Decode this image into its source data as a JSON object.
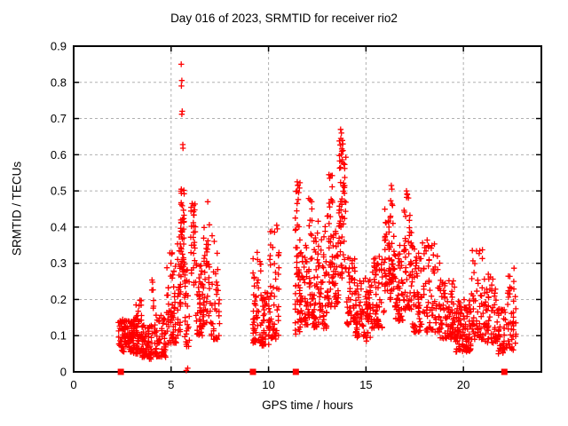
{
  "chart_data": {
    "type": "scatter",
    "title": "Day 016 of 2023, SRMTID for receiver rio2",
    "xlabel": "GPS time / hours",
    "ylabel": "SRMTID / TECUs",
    "xlim": [
      0,
      24
    ],
    "ylim": [
      0,
      0.9
    ],
    "xticks": [
      0,
      5,
      10,
      15,
      20
    ],
    "xtick_labels": [
      "0",
      "5",
      "10",
      "15",
      "20"
    ],
    "yticks": [
      0,
      0.1,
      0.2,
      0.3,
      0.4,
      0.5,
      0.6,
      0.7,
      0.8,
      0.9
    ],
    "ytick_labels": [
      "0",
      "0.1",
      "0.2",
      "0.3",
      "0.4",
      "0.5",
      "0.6",
      "0.7",
      "0.8",
      "0.9"
    ],
    "grid": true,
    "legend": "none",
    "marker": {
      "shape": "plus",
      "color": "#ff0000",
      "size": 6.5,
      "stroke_width": 1.3
    },
    "grid_color": "#b0b0b0",
    "border_color": "#000000",
    "axis_marker_shape": "filled-square",
    "axis_markers_x": [
      2.42,
      9.2,
      11.4,
      22.1
    ],
    "seed": 16,
    "clusters_format": [
      "x_start",
      "x_end",
      "count",
      "y_min",
      "y_max",
      "low_bias",
      "columns"
    ],
    "clusters": [
      [
        2.28,
        3.1,
        95,
        0.055,
        0.145,
        1.2,
        12
      ],
      [
        3.05,
        3.5,
        55,
        0.05,
        0.2,
        1.7,
        7
      ],
      [
        3.5,
        4.0,
        60,
        0.035,
        0.13,
        1.3,
        8
      ],
      [
        4.0,
        4.25,
        26,
        0.05,
        0.28,
        2.0,
        4
      ],
      [
        4.25,
        4.75,
        50,
        0.04,
        0.16,
        1.4,
        8
      ],
      [
        4.75,
        5.3,
        60,
        0.08,
        0.33,
        1.7,
        8
      ],
      [
        5.3,
        5.5,
        30,
        0.1,
        0.38,
        1.5,
        3
      ],
      [
        5.48,
        5.68,
        42,
        0.26,
        0.52,
        1.2,
        3
      ],
      [
        5.68,
        5.95,
        30,
        0.07,
        0.3,
        1.6,
        4
      ],
      [
        6.0,
        6.25,
        28,
        0.22,
        0.47,
        1.4,
        4
      ],
      [
        6.25,
        6.65,
        45,
        0.1,
        0.3,
        1.4,
        6
      ],
      [
        6.65,
        7.05,
        45,
        0.13,
        0.46,
        1.7,
        6
      ],
      [
        7.05,
        7.5,
        35,
        0.09,
        0.4,
        2.0,
        6
      ],
      [
        9.18,
        9.65,
        52,
        0.08,
        0.33,
        1.7,
        7
      ],
      [
        9.65,
        10.05,
        45,
        0.07,
        0.22,
        1.3,
        6
      ],
      [
        10.05,
        10.55,
        50,
        0.09,
        0.4,
        1.8,
        7
      ],
      [
        11.35,
        11.65,
        58,
        0.1,
        0.53,
        1.5,
        4
      ],
      [
        11.65,
        12.05,
        40,
        0.13,
        0.35,
        1.4,
        6
      ],
      [
        12.05,
        12.25,
        28,
        0.15,
        0.48,
        1.6,
        3
      ],
      [
        12.25,
        13.0,
        85,
        0.12,
        0.42,
        1.7,
        11
      ],
      [
        13.0,
        13.3,
        40,
        0.18,
        0.55,
        1.6,
        4
      ],
      [
        13.3,
        13.6,
        35,
        0.18,
        0.4,
        1.4,
        5
      ],
      [
        13.6,
        14.0,
        62,
        0.25,
        0.64,
        1.1,
        6
      ],
      [
        14.0,
        14.45,
        50,
        0.13,
        0.33,
        1.5,
        7
      ],
      [
        14.45,
        15.25,
        85,
        0.095,
        0.26,
        1.3,
        12
      ],
      [
        15.25,
        15.95,
        70,
        0.12,
        0.32,
        1.5,
        10
      ],
      [
        15.95,
        16.22,
        35,
        0.22,
        0.45,
        1.3,
        4
      ],
      [
        16.22,
        16.48,
        36,
        0.2,
        0.52,
        1.5,
        4
      ],
      [
        16.48,
        16.92,
        45,
        0.14,
        0.35,
        1.5,
        6
      ],
      [
        16.92,
        17.35,
        52,
        0.17,
        0.5,
        1.5,
        6
      ],
      [
        17.35,
        18.1,
        70,
        0.11,
        0.36,
        1.7,
        10
      ],
      [
        18.1,
        18.8,
        65,
        0.11,
        0.37,
        1.7,
        9
      ],
      [
        18.8,
        19.6,
        80,
        0.09,
        0.26,
        1.6,
        11
      ],
      [
        19.6,
        20.4,
        95,
        0.055,
        0.2,
        1.5,
        12
      ],
      [
        20.4,
        21.1,
        62,
        0.09,
        0.34,
        1.8,
        9
      ],
      [
        21.1,
        21.78,
        58,
        0.08,
        0.27,
        1.6,
        9
      ],
      [
        21.78,
        22.25,
        42,
        0.05,
        0.18,
        1.4,
        7
      ],
      [
        22.25,
        22.72,
        40,
        0.06,
        0.29,
        1.5,
        5
      ]
    ],
    "outlier_points": [
      [
        5.52,
        0.85
      ],
      [
        5.55,
        0.805
      ],
      [
        5.53,
        0.79
      ],
      [
        5.57,
        0.72
      ],
      [
        5.55,
        0.712
      ],
      [
        5.6,
        0.628
      ],
      [
        5.61,
        0.618
      ],
      [
        5.78,
        0.004
      ],
      [
        5.85,
        0.01
      ],
      [
        13.7,
        0.67
      ],
      [
        13.74,
        0.66
      ],
      [
        13.71,
        0.645
      ],
      [
        13.68,
        0.627
      ],
      [
        13.76,
        0.616
      ],
      [
        13.73,
        0.601
      ],
      [
        13.78,
        0.586
      ],
      [
        11.47,
        0.525
      ],
      [
        11.5,
        0.515
      ],
      [
        13.1,
        0.545
      ],
      [
        13.14,
        0.535
      ],
      [
        16.3,
        0.515
      ],
      [
        16.33,
        0.505
      ],
      [
        17.08,
        0.5
      ],
      [
        17.12,
        0.49
      ],
      [
        12.14,
        0.475
      ],
      [
        6.08,
        0.465
      ],
      [
        6.88,
        0.47
      ],
      [
        9.42,
        0.33
      ],
      [
        10.42,
        0.405
      ],
      [
        10.45,
        0.395
      ],
      [
        15.02,
        0.085
      ],
      [
        15.05,
        0.095
      ]
    ]
  }
}
